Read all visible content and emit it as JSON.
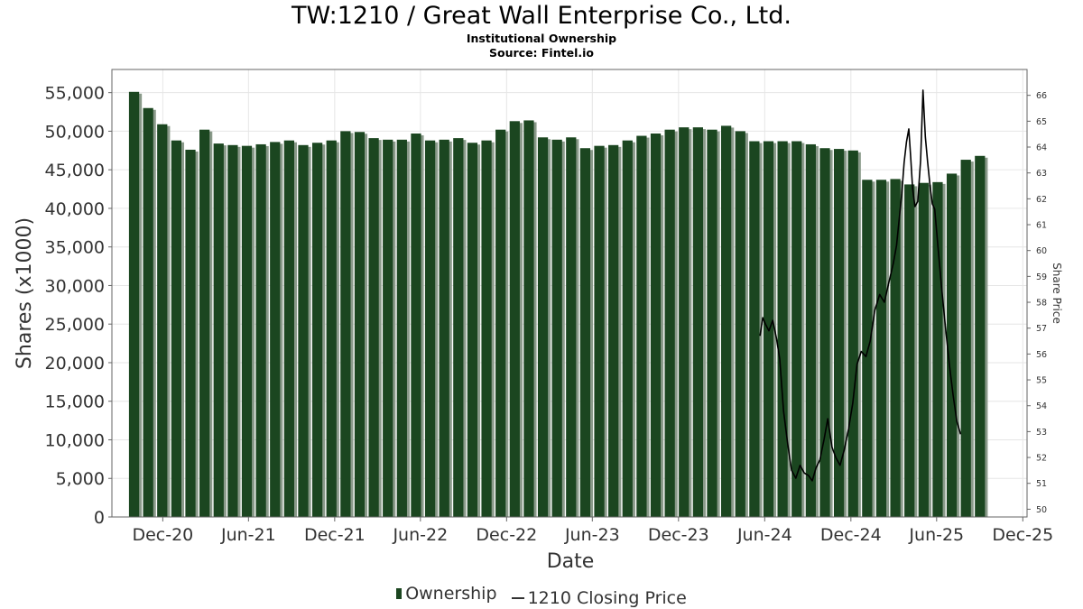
{
  "header": {
    "title": "TW:1210 / Great Wall Enterprise Co., Ltd.",
    "subtitle": "Institutional Ownership",
    "source": "Source: Fintel.io"
  },
  "legend": {
    "ownership": "Ownership",
    "price": "1210 Closing Price"
  },
  "colors": {
    "bar": "#1b4620",
    "bar_shadow": "#8a9a8a",
    "price_line": "#000000",
    "grid": "#e6e6e6"
  },
  "chart_data": {
    "type": "bar",
    "title": "TW:1210 / Great Wall Enterprise Co., Ltd.",
    "xlabel": "Date",
    "ylabel": "Shares (x1000)",
    "y2label": "Share Price",
    "ylim": [
      0,
      58000
    ],
    "y2lim": [
      49.7,
      67
    ],
    "yticks": [
      0,
      5000,
      10000,
      15000,
      20000,
      25000,
      30000,
      35000,
      40000,
      45000,
      50000,
      55000
    ],
    "ytick_labels": [
      "0",
      "5,000",
      "10,000",
      "15,000",
      "20,000",
      "25,000",
      "30,000",
      "35,000",
      "40,000",
      "45,000",
      "50,000",
      "55,000"
    ],
    "y2ticks": [
      50,
      51,
      52,
      53,
      54,
      55,
      56,
      57,
      58,
      59,
      60,
      61,
      62,
      63,
      64,
      65,
      66
    ],
    "x_range": [
      "2020-08-15",
      "2025-12-10"
    ],
    "xticks": [
      {
        "label": "Dec-20",
        "date": "2020-12-01"
      },
      {
        "label": "Jun-21",
        "date": "2021-06-01"
      },
      {
        "label": "Dec-21",
        "date": "2021-12-01"
      },
      {
        "label": "Jun-22",
        "date": "2022-06-01"
      },
      {
        "label": "Dec-22",
        "date": "2022-12-01"
      },
      {
        "label": "Jun-23",
        "date": "2023-06-01"
      },
      {
        "label": "Dec-23",
        "date": "2023-12-01"
      },
      {
        "label": "Jun-24",
        "date": "2024-06-01"
      },
      {
        "label": "Dec-24",
        "date": "2024-12-01"
      },
      {
        "label": "Jun-25",
        "date": "2025-06-01"
      },
      {
        "label": "Dec-25",
        "date": "2025-12-01"
      }
    ],
    "grid": true,
    "legend_position": "bottom",
    "series": [
      {
        "name": "Ownership",
        "kind": "bar",
        "axis": "left",
        "start_date": "2020-10-01",
        "end_date": "2025-09-01",
        "values": [
          55100,
          53000,
          50900,
          48800,
          47600,
          50200,
          48400,
          48200,
          48100,
          48300,
          48600,
          48800,
          48200,
          48500,
          48800,
          50000,
          49900,
          49100,
          48900,
          48900,
          49700,
          48800,
          48900,
          49100,
          48500,
          48800,
          50200,
          51300,
          51400,
          49200,
          48900,
          49200,
          47800,
          48100,
          48200,
          48800,
          49400,
          49700,
          50200,
          50500,
          50500,
          50200,
          50700,
          50000,
          48700,
          48700,
          48700,
          48700,
          48300,
          47800,
          47700,
          47500,
          43700,
          43700,
          43800,
          43100,
          43300,
          43400,
          44500,
          46300,
          46800
        ]
      },
      {
        "name": "1210 Closing Price",
        "kind": "line",
        "axis": "right",
        "points": [
          [
            "2024-05-22",
            56.7
          ],
          [
            "2024-05-28",
            57.4
          ],
          [
            "2024-06-04",
            57.1
          ],
          [
            "2024-06-10",
            56.9
          ],
          [
            "2024-06-18",
            57.3
          ],
          [
            "2024-06-26",
            56.6
          ],
          [
            "2024-07-03",
            55.8
          ],
          [
            "2024-07-11",
            53.8
          ],
          [
            "2024-07-20",
            52.5
          ],
          [
            "2024-07-28",
            51.5
          ],
          [
            "2024-08-06",
            51.2
          ],
          [
            "2024-08-15",
            51.7
          ],
          [
            "2024-08-24",
            51.4
          ],
          [
            "2024-09-02",
            51.3
          ],
          [
            "2024-09-10",
            51.1
          ],
          [
            "2024-09-18",
            51.6
          ],
          [
            "2024-09-26",
            51.9
          ],
          [
            "2024-10-05",
            52.7
          ],
          [
            "2024-10-13",
            53.5
          ],
          [
            "2024-10-22",
            52.4
          ],
          [
            "2024-10-30",
            52.0
          ],
          [
            "2024-11-08",
            51.7
          ],
          [
            "2024-11-17",
            52.3
          ],
          [
            "2024-11-26",
            53.1
          ],
          [
            "2024-12-05",
            54.1
          ],
          [
            "2024-12-14",
            55.6
          ],
          [
            "2024-12-23",
            56.1
          ],
          [
            "2025-01-02",
            55.9
          ],
          [
            "2025-01-11",
            56.5
          ],
          [
            "2025-01-21",
            57.7
          ],
          [
            "2025-01-31",
            58.3
          ],
          [
            "2025-02-10",
            58.0
          ],
          [
            "2025-02-20",
            58.8
          ],
          [
            "2025-03-01",
            59.5
          ],
          [
            "2025-03-08",
            60.2
          ],
          [
            "2025-03-14",
            61.3
          ],
          [
            "2025-03-19",
            62.2
          ],
          [
            "2025-03-24",
            63.4
          ],
          [
            "2025-03-29",
            64.2
          ],
          [
            "2025-04-03",
            64.7
          ],
          [
            "2025-04-07",
            63.6
          ],
          [
            "2025-04-11",
            62.4
          ],
          [
            "2025-04-16",
            61.7
          ],
          [
            "2025-04-22",
            61.9
          ],
          [
            "2025-04-28",
            63.5
          ],
          [
            "2025-05-03",
            66.2
          ],
          [
            "2025-05-08",
            64.4
          ],
          [
            "2025-05-13",
            63.4
          ],
          [
            "2025-05-18",
            62.5
          ],
          [
            "2025-05-23",
            61.8
          ],
          [
            "2025-05-28",
            61.6
          ],
          [
            "2025-06-04",
            60.1
          ],
          [
            "2025-06-12",
            58.5
          ],
          [
            "2025-06-20",
            57.0
          ],
          [
            "2025-06-28",
            55.6
          ],
          [
            "2025-07-06",
            54.4
          ],
          [
            "2025-07-14",
            53.4
          ],
          [
            "2025-07-22",
            52.9
          ]
        ]
      }
    ]
  }
}
